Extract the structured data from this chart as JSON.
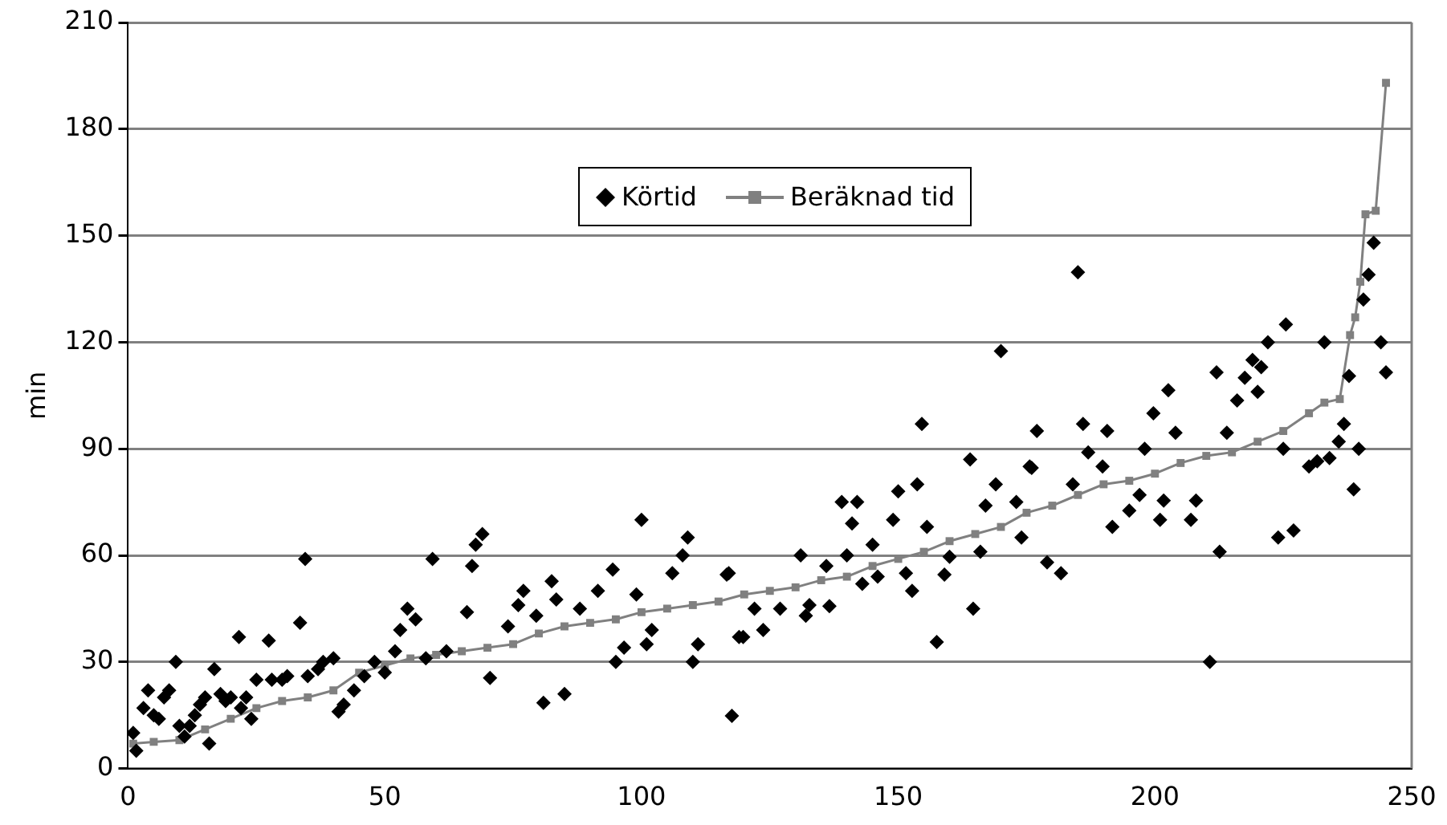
{
  "chart_data": {
    "type": "scatter",
    "ylabel": "min",
    "xlim": [
      0,
      250
    ],
    "xticks": [
      0,
      50,
      100,
      150,
      200,
      250
    ],
    "ylim": [
      0,
      210
    ],
    "yticks": [
      0,
      30,
      60,
      90,
      120,
      150,
      180,
      210
    ],
    "grid": "y",
    "legend": "top",
    "series": [
      {
        "name": "Körtid",
        "type": "scatter",
        "marker": "diamond",
        "color": "#000000",
        "x": [
          1,
          1.6,
          3,
          3.9,
          5,
          6,
          7,
          8,
          9.3,
          10,
          11,
          12,
          13,
          14,
          15,
          15.8,
          16.8,
          18,
          19,
          20,
          21.6,
          22,
          23,
          24,
          25,
          27.4,
          28,
          30,
          31,
          33.5,
          34.5,
          35,
          37,
          38,
          40,
          41,
          42,
          44,
          46,
          48,
          50,
          52,
          53,
          54.4,
          56,
          58,
          59.3,
          62,
          66,
          67,
          67.7,
          69,
          70.5,
          74,
          76,
          77,
          79.5,
          80.9,
          82.5,
          83.4,
          85,
          88,
          91.5,
          94.4,
          95,
          96.6,
          99,
          100,
          101,
          102,
          106,
          108,
          109,
          110,
          111,
          116.6,
          117,
          117.6,
          119,
          119.8,
          122,
          123.7,
          127,
          131,
          132,
          132.7,
          136,
          136.6,
          139,
          140,
          141,
          142,
          143,
          145,
          146,
          149,
          150,
          151.5,
          152.7,
          153.7,
          154.6,
          155.6,
          157.5,
          159,
          160,
          164,
          164.6,
          166,
          167,
          169,
          170,
          173,
          174,
          175.6,
          176,
          177,
          179,
          181.7,
          184,
          185,
          186,
          187,
          189.8,
          190.7,
          191.7,
          195,
          197,
          198,
          199.7,
          201,
          201.7,
          202.6,
          204,
          207,
          208,
          210.7,
          212,
          212.6,
          214,
          216,
          217.5,
          219,
          220,
          220.7,
          222,
          224,
          225,
          225.5,
          227,
          230,
          231.6,
          233,
          234,
          235.8,
          236.8,
          237.8,
          238.7,
          239.7,
          240.6,
          241.6,
          242.6,
          244,
          245
        ],
        "values": [
          10,
          5,
          17,
          22,
          15,
          14,
          20,
          22,
          30,
          12,
          9,
          12,
          15,
          18,
          20,
          7,
          28,
          21,
          19,
          20,
          37,
          17,
          20,
          14,
          25,
          36,
          25,
          25,
          26,
          41,
          59,
          26,
          28,
          30,
          31,
          16,
          18,
          22,
          26,
          30,
          27,
          33,
          39,
          45,
          42,
          31,
          59,
          33,
          44,
          57,
          63,
          66,
          25.5,
          40,
          46,
          50,
          43,
          18.5,
          52.7,
          47.6,
          21,
          45,
          50,
          56,
          30,
          34,
          49,
          70,
          35,
          39,
          55,
          60,
          65,
          30,
          35,
          54.6,
          55,
          14.8,
          37,
          37,
          45,
          39,
          45,
          60,
          43,
          46,
          57,
          45.7,
          75,
          60,
          69,
          75,
          52,
          63,
          54,
          70,
          78,
          55,
          50,
          80,
          97,
          68,
          35.6,
          54.6,
          59.6,
          87,
          45,
          61,
          74,
          80,
          117.5,
          75,
          65,
          85,
          84.6,
          95,
          58,
          55,
          80,
          139.7,
          97,
          89,
          85,
          95,
          68,
          72.6,
          77,
          90,
          100,
          70,
          75.4,
          106.5,
          94.5,
          70,
          75.4,
          30,
          111.5,
          61,
          94.5,
          103.6,
          110,
          115,
          106,
          113,
          120,
          65,
          90,
          125,
          67,
          85,
          86.5,
          120,
          87.4,
          92,
          97,
          110.5,
          78.6,
          90,
          132,
          139,
          148,
          120,
          111.5
        ]
      },
      {
        "name": "Beräknad tid",
        "type": "line",
        "marker": "square",
        "line_style": "solid",
        "color": "#808080",
        "x": [
          1,
          5,
          10,
          15,
          20,
          25,
          30,
          35,
          40,
          45,
          50,
          55,
          60,
          65,
          70,
          75,
          80,
          85,
          90,
          95,
          100,
          105,
          110,
          115,
          120,
          125,
          130,
          135,
          140,
          145,
          150,
          155,
          160,
          165,
          170,
          175,
          180,
          185,
          190,
          195,
          200,
          205,
          210,
          215,
          220,
          225,
          230,
          233,
          236,
          238,
          239,
          240,
          241,
          243,
          245
        ],
        "values": [
          7,
          7.5,
          8,
          11,
          14,
          17,
          19,
          20,
          22,
          27,
          29,
          31,
          32,
          33,
          34,
          35,
          38,
          40,
          41,
          42,
          44,
          45,
          46,
          47,
          49,
          50,
          51,
          53,
          54,
          57,
          59,
          61,
          64,
          66,
          68,
          72,
          74,
          77,
          80,
          81,
          83,
          86,
          88,
          89,
          92,
          95,
          100,
          103,
          104,
          122,
          127,
          137,
          156,
          157,
          193
        ]
      }
    ]
  }
}
